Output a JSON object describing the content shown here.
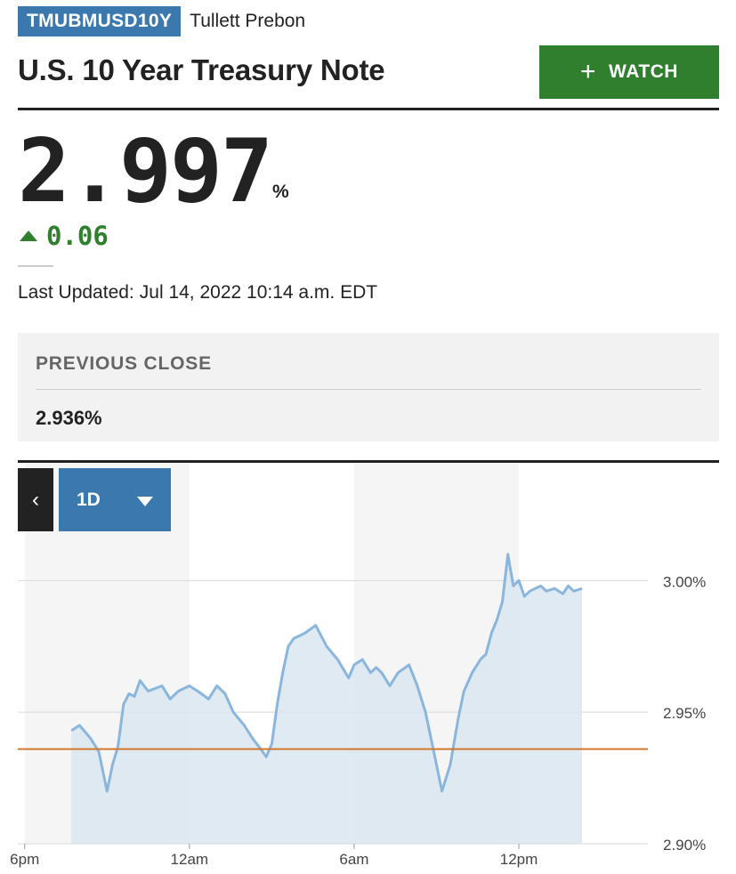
{
  "header": {
    "symbol": "TMUBMUSD10Y",
    "source": "Tullett Prebon",
    "title": "U.S. 10 Year Treasury Note",
    "watch_label": "WATCH"
  },
  "quote": {
    "price": "2.997",
    "unit": "%",
    "change": "0.06",
    "last_updated_label": "Last Updated:",
    "last_updated": "Jul 14, 2022 10:14 a.m. EDT"
  },
  "previous_close": {
    "label": "PREVIOUS CLOSE",
    "value": "2.936%"
  },
  "controls": {
    "prev_label": "‹",
    "range": "1D"
  },
  "colors": {
    "accent_blue": "#3a78ad",
    "watch_green": "#2f7f2f",
    "line": "#8ab6de",
    "area": "#dbe6f0",
    "prev_close_line": "#d2782f"
  },
  "chart_data": {
    "type": "area",
    "x_unit": "hours after 6pm (Jul 13)",
    "x_ticks": [
      "6pm",
      "12am",
      "6am",
      "12pm"
    ],
    "y_ticks": [
      "3.00%",
      "2.95%",
      "2.90%"
    ],
    "ylim": [
      2.9,
      3.015
    ],
    "xlim": [
      -0.25,
      22.7
    ],
    "previous_close": 2.936,
    "series": [
      {
        "x": [
          1.7,
          2.0,
          2.4,
          2.7,
          3.0,
          3.2,
          3.4,
          3.6,
          3.8,
          4.0,
          4.2,
          4.5,
          5.0,
          5.3,
          5.6,
          6.0,
          6.3,
          6.7,
          7.0,
          7.3,
          7.6,
          8.0,
          8.3,
          8.6,
          8.8,
          9.0,
          9.2,
          9.4,
          9.6,
          9.8,
          10.2,
          10.6,
          11.0,
          11.4,
          11.8,
          12.0,
          12.3,
          12.6,
          12.8,
          13.0,
          13.3,
          13.6,
          14.0,
          14.3,
          14.6,
          14.9,
          15.2,
          15.5,
          15.8,
          16.0,
          16.3,
          16.6,
          16.8,
          17.0,
          17.2,
          17.4,
          17.6,
          17.8,
          18.0,
          18.2,
          18.4,
          18.6,
          18.8,
          19.0,
          19.3,
          19.6,
          19.8,
          20.0,
          20.3
        ],
        "y": [
          2.943,
          2.945,
          2.94,
          2.935,
          2.92,
          2.93,
          2.937,
          2.953,
          2.957,
          2.956,
          2.962,
          2.958,
          2.96,
          2.955,
          2.958,
          2.96,
          2.958,
          2.955,
          2.96,
          2.957,
          2.95,
          2.945,
          2.94,
          2.936,
          2.933,
          2.938,
          2.953,
          2.965,
          2.975,
          2.978,
          2.98,
          2.983,
          2.975,
          2.97,
          2.963,
          2.968,
          2.97,
          2.965,
          2.967,
          2.965,
          2.96,
          2.965,
          2.968,
          2.96,
          2.95,
          2.935,
          2.92,
          2.93,
          2.948,
          2.958,
          2.965,
          2.97,
          2.972,
          2.98,
          2.985,
          2.992,
          3.01,
          2.998,
          3.0,
          2.994,
          2.996,
          2.997,
          2.998,
          2.996,
          2.997,
          2.995,
          2.998,
          2.996,
          2.997
        ]
      }
    ]
  }
}
